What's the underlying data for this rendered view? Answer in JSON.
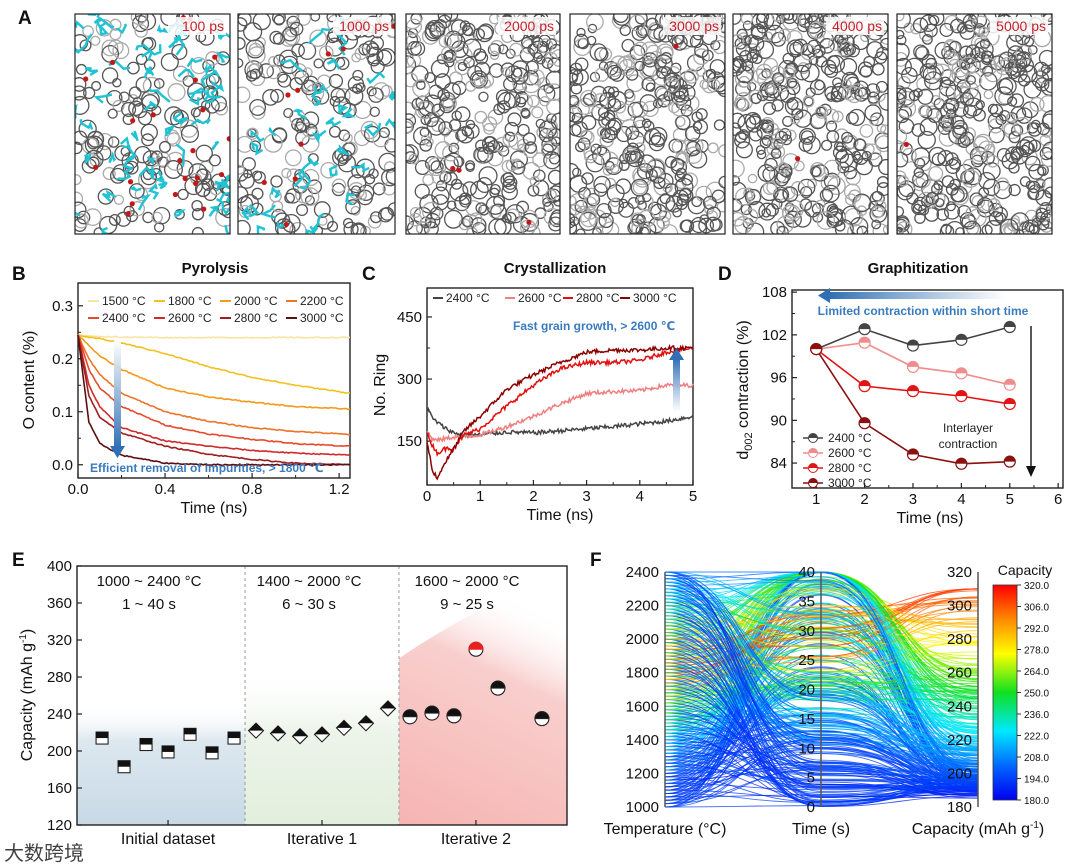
{
  "panel_a": {
    "label": "A",
    "snapshots": [
      "100 ps",
      "1000 ps",
      "2000 ps",
      "3000 ps",
      "4000 ps",
      "5000 ps"
    ]
  },
  "watermark": "大数跨境",
  "chart_data": [
    {
      "panel": "B",
      "type": "line",
      "title": "Pyrolysis",
      "xlabel": "Time (ns)",
      "ylabel": "O content (%)",
      "xlim": [
        0,
        1.25
      ],
      "ylim": [
        -0.025,
        0.343
      ],
      "xticks": [
        "0.0",
        "0.4",
        "0.8",
        "1.2"
      ],
      "xtick_values": [
        0,
        0.4,
        0.8,
        1.2
      ],
      "yticks": [
        "0.0",
        "0.1",
        "0.2",
        "0.3"
      ],
      "ytick_values": [
        0,
        0.1,
        0.2,
        0.3
      ],
      "x": [
        0,
        0.05,
        0.1,
        0.2,
        0.4,
        0.6,
        0.8,
        1.0,
        1.25
      ],
      "series": [
        {
          "name": "1500 °C",
          "color": "#fbe3a2",
          "values": [
            0.245,
            0.243,
            0.242,
            0.241,
            0.24,
            0.24,
            0.24,
            0.24,
            0.24
          ]
        },
        {
          "name": "1800 °C",
          "color": "#f4c020",
          "values": [
            0.245,
            0.24,
            0.238,
            0.23,
            0.21,
            0.185,
            0.165,
            0.15,
            0.135
          ]
        },
        {
          "name": "2000 °C",
          "color": "#f49a1e",
          "values": [
            0.245,
            0.225,
            0.205,
            0.18,
            0.145,
            0.128,
            0.118,
            0.11,
            0.105
          ]
        },
        {
          "name": "2200 °C",
          "color": "#ee7428",
          "values": [
            0.245,
            0.2,
            0.17,
            0.135,
            0.1,
            0.082,
            0.07,
            0.063,
            0.057
          ]
        },
        {
          "name": "2400 °C",
          "color": "#e64a2a",
          "values": [
            0.245,
            0.18,
            0.145,
            0.11,
            0.075,
            0.058,
            0.048,
            0.04,
            0.035
          ]
        },
        {
          "name": "2600 °C",
          "color": "#d02a2a",
          "values": [
            0.245,
            0.15,
            0.11,
            0.07,
            0.045,
            0.035,
            0.027,
            0.022,
            0.018
          ]
        },
        {
          "name": "2800 °C",
          "color": "#a01e20",
          "values": [
            0.245,
            0.13,
            0.09,
            0.06,
            0.035,
            0.02,
            0.01,
            0.003,
            0.0
          ]
        },
        {
          "name": "3000 °C",
          "color": "#5a1010",
          "values": [
            0.245,
            0.08,
            0.04,
            0.018,
            0.003,
            0.0,
            0.0,
            0.0,
            0.0
          ]
        }
      ],
      "annotation": "Efficient removal of impurities, > 1800 ℃"
    },
    {
      "panel": "C",
      "type": "line",
      "title": "Crystallization",
      "xlabel": "Time (ns)",
      "ylabel": "No. Ring",
      "xlim": [
        0,
        5
      ],
      "ylim": [
        44,
        520
      ],
      "xticks": [
        "0",
        "1",
        "2",
        "3",
        "4",
        "5"
      ],
      "xtick_values": [
        0,
        1,
        2,
        3,
        4,
        5
      ],
      "yticks": [
        "150",
        "300",
        "450"
      ],
      "ytick_values": [
        150,
        300,
        450
      ],
      "x": [
        0,
        0.1,
        0.2,
        0.3,
        0.5,
        0.7,
        1,
        1.5,
        2,
        2.5,
        3,
        3.5,
        4,
        4.5,
        5
      ],
      "series": [
        {
          "name": "2400 °C",
          "color": "#444444",
          "values": [
            235,
            205,
            195,
            185,
            170,
            165,
            165,
            172,
            170,
            175,
            180,
            185,
            192,
            198,
            210
          ]
        },
        {
          "name": "2600 °C",
          "color": "#f08080",
          "values": [
            175,
            155,
            152,
            155,
            160,
            162,
            165,
            185,
            210,
            240,
            265,
            270,
            272,
            285,
            285
          ]
        },
        {
          "name": "2800 °C",
          "color": "#e01010",
          "values": [
            170,
            140,
            120,
            130,
            135,
            165,
            180,
            235,
            285,
            325,
            340,
            340,
            345,
            365,
            375
          ]
        },
        {
          "name": "3000 °C",
          "color": "#8b0000",
          "values": [
            150,
            80,
            60,
            90,
            130,
            175,
            210,
            275,
            310,
            340,
            365,
            370,
            370,
            375,
            375
          ]
        }
      ],
      "annotation": "Fast grain growth, > 2600 ℃"
    },
    {
      "panel": "D",
      "type": "line",
      "title": "Graphitization",
      "xlabel": "Time (ns)",
      "ylabel_parts": [
        "d",
        "002",
        " contraction (%)"
      ],
      "xlim": [
        0.5,
        6.1
      ],
      "ylim": [
        80.5,
        108.3
      ],
      "xticks": [
        "1",
        "2",
        "3",
        "4",
        "5",
        "6"
      ],
      "xtick_values": [
        1,
        2,
        3,
        4,
        5,
        6
      ],
      "yticks": [
        "84",
        "90",
        "96",
        "102",
        "108"
      ],
      "ytick_values": [
        84,
        90,
        96,
        102,
        108
      ],
      "x": [
        1,
        2,
        3,
        4,
        5
      ],
      "series": [
        {
          "name": "2400 °C",
          "color": "#444444",
          "values": [
            100,
            102.8,
            100.5,
            101.3,
            103.1
          ]
        },
        {
          "name": "2600 °C",
          "color": "#f08c8c",
          "values": [
            100,
            100.9,
            97.5,
            96.6,
            95.0
          ]
        },
        {
          "name": "2800 °C",
          "color": "#e01515",
          "values": [
            100,
            94.8,
            94.1,
            93.4,
            92.3
          ]
        },
        {
          "name": "3000 °C",
          "color": "#8b1010",
          "values": [
            100,
            89.6,
            85.2,
            83.9,
            84.2
          ]
        }
      ],
      "annotation_top": "Limited contraction within short time",
      "annotation_side": [
        "Interlayer",
        "contraction"
      ]
    },
    {
      "panel": "E",
      "type": "scatter",
      "ylabel_parts": [
        "Capacity (mAh g",
        "-1",
        ")"
      ],
      "xlim": [
        -0.14,
        22.14
      ],
      "ylim": [
        120,
        400
      ],
      "yticks": [
        "120",
        "160",
        "200",
        "240",
        "280",
        "320",
        "360",
        "400"
      ],
      "ytick_values": [
        120,
        160,
        200,
        240,
        280,
        320,
        360,
        400
      ],
      "categories": [
        "Initial dataset",
        "Iterative 1",
        "Iterative 2"
      ],
      "category_positions": [
        4,
        11,
        18
      ],
      "dividers": [
        7.5,
        14.5
      ],
      "ranges": [
        {
          "temp": "1000 ~ 2400 °C",
          "time": "1 ~ 40 s"
        },
        {
          "temp": "1400 ~ 2000 °C",
          "time": "6 ~ 30 s"
        },
        {
          "temp": "1600 ~ 2000 °C",
          "time": "9 ~ 25 s"
        }
      ],
      "series": [
        {
          "name": "Initial dataset",
          "marker": "square",
          "x": [
            1,
            2,
            3,
            4,
            5,
            6,
            7
          ],
          "values": [
            214,
            183,
            207,
            199,
            218,
            198,
            214
          ]
        },
        {
          "name": "Iterative 1",
          "marker": "diamond",
          "x": [
            8,
            9,
            10,
            11,
            12,
            13,
            14
          ],
          "values": [
            222,
            219,
            216,
            218,
            225,
            230,
            246
          ]
        },
        {
          "name": "Iterative 2",
          "marker": "circle",
          "x": [
            15,
            16,
            17,
            18,
            19,
            21
          ],
          "values": [
            237,
            241,
            238,
            310,
            268,
            235
          ],
          "highlight_index": 3,
          "highlight_color": "#e82020"
        }
      ]
    },
    {
      "panel": "F",
      "type": "parallel-coordinates",
      "axes": [
        {
          "label": "Temperature (°C)",
          "range": [
            1000,
            2400
          ],
          "ticks": [
            "1000",
            "1200",
            "1400",
            "1600",
            "1800",
            "2000",
            "2200",
            "2400"
          ],
          "tick_values": [
            1000,
            1200,
            1400,
            1600,
            1800,
            2000,
            2200,
            2400
          ]
        },
        {
          "label": "Time (s)",
          "range": [
            0,
            40
          ],
          "ticks": [
            "0",
            "5",
            "10",
            "15",
            "20",
            "25",
            "30",
            "35",
            "40"
          ],
          "tick_values": [
            0,
            5,
            10,
            15,
            20,
            25,
            30,
            35,
            40
          ]
        },
        {
          "label_parts": [
            "Capacity (mAh g",
            "-1",
            ")"
          ],
          "range": [
            180,
            320
          ],
          "ticks": [
            "180",
            "200",
            "220",
            "240",
            "260",
            "280",
            "300",
            "320"
          ],
          "tick_values": [
            180,
            200,
            220,
            240,
            260,
            280,
            300,
            320
          ]
        }
      ],
      "colorbar": {
        "title": "Capacity",
        "range": [
          180,
          320
        ],
        "ticks": [
          "180.0",
          "194.0",
          "208.0",
          "222.0",
          "236.0",
          "250.0",
          "264.0",
          "278.0",
          "292.0",
          "306.0",
          "320.0"
        ],
        "tick_values": [
          180,
          194,
          208,
          222,
          236,
          250,
          264,
          278,
          292,
          306,
          320
        ]
      }
    }
  ]
}
